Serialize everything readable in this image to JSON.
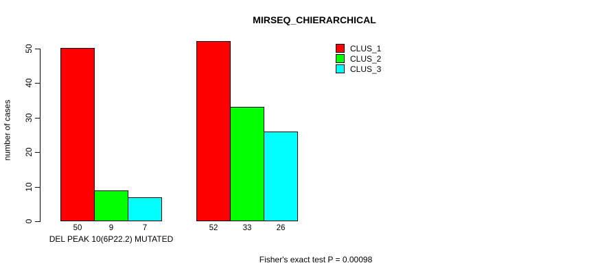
{
  "chart_data": {
    "type": "bar",
    "title": "MIRSEQ_CHIERARCHICAL",
    "ylabel": "number of cases",
    "xlabel": "",
    "ylim": [
      0,
      50
    ],
    "yticks": [
      0,
      10,
      20,
      30,
      40,
      50
    ],
    "grid": false,
    "legend_position": "top-right",
    "series": [
      {
        "name": "CLUS_1",
        "color": "#ff0000"
      },
      {
        "name": "CLUS_2",
        "color": "#00ff00"
      },
      {
        "name": "CLUS_3",
        "color": "#00ffff"
      }
    ],
    "groups": [
      {
        "label": "DEL PEAK 10(6P22.2) MUTATED",
        "values": [
          50,
          9,
          7
        ]
      },
      {
        "label": "",
        "values": [
          52,
          33,
          26
        ]
      }
    ],
    "annotation": "Fisher's exact test P = 0.00098"
  },
  "colors": {
    "background": "#ffffff",
    "text": "#000000",
    "bar_border": "#000000"
  }
}
